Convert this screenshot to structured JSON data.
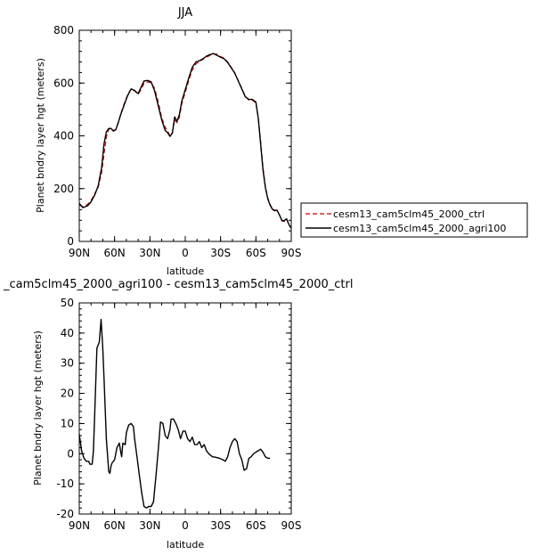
{
  "chart_data": [
    {
      "type": "line",
      "title": "JJA",
      "xlabel": "latitude",
      "ylabel": "Planet bndry layer hgt (meters)",
      "xlim": [
        90,
        -90
      ],
      "ylim": [
        0,
        800
      ],
      "xticks": [
        {
          "value": 90,
          "label": "90N"
        },
        {
          "value": 60,
          "label": "60N"
        },
        {
          "value": 30,
          "label": "30N"
        },
        {
          "value": 0,
          "label": "0"
        },
        {
          "value": -30,
          "label": "30S"
        },
        {
          "value": -60,
          "label": "60S"
        },
        {
          "value": -90,
          "label": "90S"
        }
      ],
      "yticks": [
        0,
        200,
        400,
        600,
        800
      ],
      "grid": false,
      "legend_position": "right",
      "series": [
        {
          "name": "cesm13_cam5clm45_2000_ctrl",
          "color": "#cc0000",
          "style": "dashed",
          "points": [
            [
              90,
              138
            ],
            [
              87,
              132
            ],
            [
              83,
              140
            ],
            [
              80,
              155
            ],
            [
              77,
              180
            ],
            [
              74,
              205
            ],
            [
              71,
              260
            ],
            [
              69,
              330
            ],
            [
              67,
              395
            ],
            [
              65,
              425
            ],
            [
              63,
              428
            ],
            [
              61,
              420
            ],
            [
              59,
              425
            ],
            [
              57,
              450
            ],
            [
              55,
              480
            ],
            [
              52,
              520
            ],
            [
              49,
              555
            ],
            [
              46,
              578
            ],
            [
              43,
              570
            ],
            [
              40,
              558
            ],
            [
              38,
              572
            ],
            [
              35,
              598
            ],
            [
              32,
              605
            ],
            [
              29,
              600
            ],
            [
              26,
              580
            ],
            [
              23,
              530
            ],
            [
              20,
              468
            ],
            [
              17,
              432
            ],
            [
              15,
              420
            ],
            [
              13,
              400
            ],
            [
              11,
              412
            ],
            [
              9,
              460
            ],
            [
              7,
              450
            ],
            [
              5,
              470
            ],
            [
              3,
              520
            ],
            [
              0,
              565
            ],
            [
              -3,
              610
            ],
            [
              -6,
              650
            ],
            [
              -9,
              672
            ],
            [
              -12,
              682
            ],
            [
              -15,
              690
            ],
            [
              -18,
              698
            ],
            [
              -21,
              705
            ],
            [
              -24,
              710
            ],
            [
              -27,
              710
            ],
            [
              -30,
              700
            ],
            [
              -33,
              695
            ],
            [
              -36,
              680
            ],
            [
              -39,
              660
            ],
            [
              -42,
              640
            ],
            [
              -45,
              610
            ],
            [
              -48,
              580
            ],
            [
              -51,
              550
            ],
            [
              -54,
              535
            ],
            [
              -57,
              535
            ],
            [
              -60,
              525
            ],
            [
              -62,
              470
            ],
            [
              -64,
              380
            ],
            [
              -66,
              280
            ],
            [
              -68,
              210
            ],
            [
              -70,
              165
            ],
            [
              -72,
              140
            ],
            [
              -74,
              125
            ],
            [
              -76,
              118
            ],
            [
              -78,
              118
            ],
            [
              -80,
              100
            ],
            [
              -82,
              78
            ],
            [
              -84,
              76
            ],
            [
              -86,
              85
            ],
            [
              -88,
              62
            ],
            [
              -90,
              50
            ]
          ]
        },
        {
          "name": "cesm13_cam5clm45_2000_agri100",
          "color": "#000000",
          "style": "solid",
          "points": [
            [
              90,
              144
            ],
            [
              87,
              128
            ],
            [
              83,
              135
            ],
            [
              80,
              150
            ],
            [
              77,
              175
            ],
            [
              74,
              210
            ],
            [
              71,
              280
            ],
            [
              69,
              370
            ],
            [
              67,
              415
            ],
            [
              65,
              428
            ],
            [
              63,
              428
            ],
            [
              61,
              418
            ],
            [
              59,
              423
            ],
            [
              57,
              448
            ],
            [
              55,
              478
            ],
            [
              52,
              515
            ],
            [
              49,
              552
            ],
            [
              46,
              578
            ],
            [
              43,
              572
            ],
            [
              40,
              560
            ],
            [
              38,
              580
            ],
            [
              35,
              608
            ],
            [
              32,
              610
            ],
            [
              29,
              605
            ],
            [
              26,
              570
            ],
            [
              23,
              515
            ],
            [
              20,
              460
            ],
            [
              17,
              420
            ],
            [
              15,
              412
            ],
            [
              13,
              398
            ],
            [
              11,
              410
            ],
            [
              9,
              472
            ],
            [
              7,
              455
            ],
            [
              5,
              480
            ],
            [
              3,
              530
            ],
            [
              0,
              575
            ],
            [
              -3,
              620
            ],
            [
              -6,
              660
            ],
            [
              -9,
              680
            ],
            [
              -12,
              685
            ],
            [
              -15,
              692
            ],
            [
              -18,
              702
            ],
            [
              -21,
              708
            ],
            [
              -24,
              712
            ],
            [
              -27,
              705
            ],
            [
              -30,
              698
            ],
            [
              -33,
              692
            ],
            [
              -36,
              678
            ],
            [
              -39,
              658
            ],
            [
              -42,
              638
            ],
            [
              -45,
              608
            ],
            [
              -48,
              578
            ],
            [
              -51,
              548
            ],
            [
              -54,
              538
            ],
            [
              -57,
              538
            ],
            [
              -60,
              528
            ],
            [
              -62,
              465
            ],
            [
              -64,
              370
            ],
            [
              -66,
              270
            ],
            [
              -68,
              205
            ],
            [
              -70,
              162
            ],
            [
              -72,
              138
            ],
            [
              -74,
              122
            ],
            [
              -76,
              116
            ],
            [
              -78,
              118
            ],
            [
              -80,
              100
            ],
            [
              -82,
              80
            ],
            [
              -84,
              78
            ],
            [
              -86,
              86
            ],
            [
              -88,
              64
            ],
            [
              -90,
              50
            ]
          ]
        }
      ]
    },
    {
      "type": "line",
      "title": "_cam5clm45_2000_agri100 - cesm13_cam5clm45_2000_ctrl",
      "xlabel": "latitude",
      "ylabel": "Planet bndry layer hgt (meters)",
      "xlim": [
        90,
        -90
      ],
      "ylim": [
        -20,
        50
      ],
      "xticks": [
        {
          "value": 90,
          "label": "90N"
        },
        {
          "value": 60,
          "label": "60N"
        },
        {
          "value": 30,
          "label": "30N"
        },
        {
          "value": 0,
          "label": "0"
        },
        {
          "value": -30,
          "label": "30S"
        },
        {
          "value": -60,
          "label": "60S"
        },
        {
          "value": -90,
          "label": "90S"
        }
      ],
      "yticks": [
        -20,
        -10,
        0,
        10,
        20,
        30,
        40,
        50
      ],
      "grid": false,
      "series": [
        {
          "color": "#000000",
          "style": "solid",
          "points": [
            [
              90,
              6.5
            ],
            [
              88,
              1
            ],
            [
              86,
              -1.5
            ],
            [
              84,
              -2.5
            ],
            [
              82,
              -2.5
            ],
            [
              81,
              -3.5
            ],
            [
              79,
              -3.5
            ],
            [
              78,
              1
            ],
            [
              77,
              12
            ],
            [
              75,
              35
            ],
            [
              73,
              37
            ],
            [
              71.5,
              44.5
            ],
            [
              70,
              35
            ],
            [
              69,
              25
            ],
            [
              68,
              15
            ],
            [
              67,
              5
            ],
            [
              65,
              -6
            ],
            [
              64,
              -6.5
            ],
            [
              63,
              -4
            ],
            [
              62,
              -3
            ],
            [
              60,
              -2
            ],
            [
              58,
              2
            ],
            [
              56,
              3.5
            ],
            [
              55,
              1
            ],
            [
              54,
              -1
            ],
            [
              53,
              3.5
            ],
            [
              51,
              3
            ],
            [
              50,
              7
            ],
            [
              48,
              9.5
            ],
            [
              46,
              10
            ],
            [
              44,
              9
            ],
            [
              43,
              5
            ],
            [
              41,
              -1
            ],
            [
              39,
              -7
            ],
            [
              37,
              -13
            ],
            [
              35,
              -17.5
            ],
            [
              33,
              -18
            ],
            [
              31,
              -17.5
            ],
            [
              29,
              -17.5
            ],
            [
              27,
              -16
            ],
            [
              25,
              -8
            ],
            [
              23,
              1
            ],
            [
              21,
              10.5
            ],
            [
              19,
              10
            ],
            [
              17,
              6
            ],
            [
              15,
              5
            ],
            [
              13,
              8
            ],
            [
              12,
              11.5
            ],
            [
              10,
              11.5
            ],
            [
              8,
              10
            ],
            [
              6,
              8
            ],
            [
              4,
              5
            ],
            [
              2,
              7.5
            ],
            [
              0,
              7.5
            ],
            [
              -2,
              5
            ],
            [
              -4,
              4
            ],
            [
              -6,
              5.5
            ],
            [
              -8,
              3
            ],
            [
              -10,
              3
            ],
            [
              -12,
              4
            ],
            [
              -14,
              2
            ],
            [
              -16,
              3
            ],
            [
              -18,
              1
            ],
            [
              -20,
              0
            ],
            [
              -23,
              -1
            ],
            [
              -26,
              -1.2
            ],
            [
              -29,
              -1.5
            ],
            [
              -32,
              -2
            ],
            [
              -34,
              -2.5
            ],
            [
              -36,
              -1
            ],
            [
              -38,
              2
            ],
            [
              -40,
              4
            ],
            [
              -42,
              5
            ],
            [
              -44,
              4
            ],
            [
              -46,
              0
            ],
            [
              -48,
              -2
            ],
            [
              -50,
              -5.5
            ],
            [
              -52,
              -5
            ],
            [
              -54,
              -1.5
            ],
            [
              -56,
              -1
            ],
            [
              -58,
              0
            ],
            [
              -60,
              0.5
            ],
            [
              -62,
              1
            ],
            [
              -64,
              1.5
            ],
            [
              -66,
              0.5
            ],
            [
              -68,
              -1
            ],
            [
              -70,
              -1.5
            ],
            [
              -72,
              -1.5
            ]
          ]
        }
      ]
    }
  ]
}
